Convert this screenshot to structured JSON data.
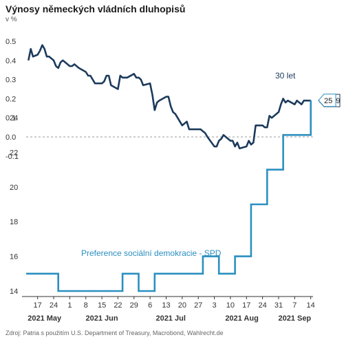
{
  "title": "Výnosy německých vládních dluhopisů",
  "unit_label": "v %",
  "source": "Zdroj: Patria s použitím U.S. Department of Treasury, Macrobond, Wahlrecht.de",
  "colors": {
    "yield": "#1b3a5c",
    "spd": "#2a8fc0",
    "axis": "#333333",
    "zero_line": "#999999"
  },
  "chart_data": [
    {
      "type": "line",
      "panel": "top",
      "ylim": [
        -0.1,
        0.6
      ],
      "yticks": [
        "0.5",
        "0.4",
        "0.3",
        "0.2",
        "0.1",
        "0.0",
        "-0.1"
      ],
      "ytick_values": [
        0.5,
        0.4,
        0.3,
        0.2,
        0.1,
        0.0,
        -0.1
      ],
      "zero_line_dashed": true,
      "series": [
        {
          "name": "30 let",
          "last_value_label": "0.19",
          "x": [
            "2021-05-13",
            "2021-05-14",
            "2021-05-15",
            "2021-05-17",
            "2021-05-18",
            "2021-05-19",
            "2021-05-20",
            "2021-05-21",
            "2021-05-22",
            "2021-05-24",
            "2021-05-25",
            "2021-05-26",
            "2021-05-27",
            "2021-05-28",
            "2021-05-31",
            "2021-06-01",
            "2021-06-02",
            "2021-06-03",
            "2021-06-04",
            "2021-06-07",
            "2021-06-08",
            "2021-06-09",
            "2021-06-10",
            "2021-06-11",
            "2021-06-14",
            "2021-06-15",
            "2021-06-16",
            "2021-06-17",
            "2021-06-18",
            "2021-06-21",
            "2021-06-22",
            "2021-06-23",
            "2021-06-24",
            "2021-06-25",
            "2021-06-28",
            "2021-06-29",
            "2021-06-30",
            "2021-07-01",
            "2021-07-02",
            "2021-07-05",
            "2021-07-06",
            "2021-07-07",
            "2021-07-08",
            "2021-07-09",
            "2021-07-12",
            "2021-07-13",
            "2021-07-14",
            "2021-07-15",
            "2021-07-16",
            "2021-07-19",
            "2021-07-20",
            "2021-07-21",
            "2021-07-22",
            "2021-07-23",
            "2021-07-26",
            "2021-07-27",
            "2021-07-28",
            "2021-07-29",
            "2021-07-30",
            "2021-08-02",
            "2021-08-03",
            "2021-08-04",
            "2021-08-05",
            "2021-08-06",
            "2021-08-09",
            "2021-08-10",
            "2021-08-11",
            "2021-08-12",
            "2021-08-13",
            "2021-08-16",
            "2021-08-17",
            "2021-08-18",
            "2021-08-19",
            "2021-08-20",
            "2021-08-23",
            "2021-08-24",
            "2021-08-25",
            "2021-08-26",
            "2021-08-27",
            "2021-08-30",
            "2021-08-31",
            "2021-09-01",
            "2021-09-02",
            "2021-09-03",
            "2021-09-06",
            "2021-09-07",
            "2021-09-08",
            "2021-09-09",
            "2021-09-10",
            "2021-09-13"
          ],
          "values": [
            0.4,
            0.46,
            0.42,
            0.43,
            0.45,
            0.48,
            0.46,
            0.42,
            0.42,
            0.4,
            0.37,
            0.36,
            0.39,
            0.4,
            0.37,
            0.37,
            0.38,
            0.37,
            0.36,
            0.34,
            0.32,
            0.32,
            0.3,
            0.28,
            0.28,
            0.29,
            0.32,
            0.32,
            0.27,
            0.25,
            0.32,
            0.31,
            0.31,
            0.31,
            0.33,
            0.31,
            0.31,
            0.3,
            0.27,
            0.28,
            0.22,
            0.14,
            0.18,
            0.19,
            0.21,
            0.21,
            0.16,
            0.13,
            0.12,
            0.06,
            0.07,
            0.08,
            0.04,
            0.04,
            0.04,
            0.04,
            0.03,
            0.02,
            0.0,
            -0.05,
            -0.05,
            -0.02,
            -0.01,
            0.01,
            -0.02,
            -0.02,
            -0.05,
            -0.03,
            -0.06,
            -0.05,
            -0.02,
            -0.04,
            -0.03,
            0.06,
            0.06,
            0.05,
            0.05,
            0.11,
            0.1,
            0.13,
            0.17,
            0.2,
            0.18,
            0.19,
            0.17,
            0.19,
            0.18,
            0.17,
            0.19,
            0.19
          ]
        }
      ]
    },
    {
      "type": "line",
      "panel": "bottom",
      "ylim": [
        13,
        26
      ],
      "yticks": [
        "24",
        "22",
        "20",
        "18",
        "16",
        "14"
      ],
      "ytick_values": [
        24,
        22,
        20,
        18,
        16,
        14
      ],
      "xtick_labels": [
        "17",
        "24",
        "1",
        "8",
        "15",
        "22",
        "29",
        "6",
        "13",
        "20",
        "27",
        "3",
        "10",
        "17",
        "24",
        "31",
        "7",
        "14"
      ],
      "xtick_dates": [
        "2021-05-17",
        "2021-05-24",
        "2021-05-31",
        "2021-06-07",
        "2021-06-14",
        "2021-06-21",
        "2021-06-28",
        "2021-07-05",
        "2021-07-12",
        "2021-07-19",
        "2021-07-26",
        "2021-08-02",
        "2021-08-09",
        "2021-08-16",
        "2021-08-23",
        "2021-08-30",
        "2021-09-06",
        "2021-09-13"
      ],
      "month_labels": [
        {
          "label": "2021 May",
          "date": "2021-05-20"
        },
        {
          "label": "2021 Jun",
          "date": "2021-06-14"
        },
        {
          "label": "2021 Jul",
          "date": "2021-07-14"
        },
        {
          "label": "2021 Aug",
          "date": "2021-08-14"
        },
        {
          "label": "2021 Sep",
          "date": "2021-09-06"
        }
      ],
      "series": [
        {
          "name": "Preference sociální demokracie - SPD",
          "last_value_label": "25",
          "step": true,
          "x": [
            "2021-05-12",
            "2021-05-26",
            "2021-06-23",
            "2021-06-30",
            "2021-07-07",
            "2021-07-21",
            "2021-07-28",
            "2021-08-04",
            "2021-08-11",
            "2021-08-18",
            "2021-08-25",
            "2021-09-01",
            "2021-09-08",
            "2021-09-13"
          ],
          "values": [
            15,
            14,
            15,
            14,
            15,
            15,
            16,
            15,
            16,
            19,
            21,
            23,
            23,
            25
          ]
        }
      ]
    }
  ]
}
